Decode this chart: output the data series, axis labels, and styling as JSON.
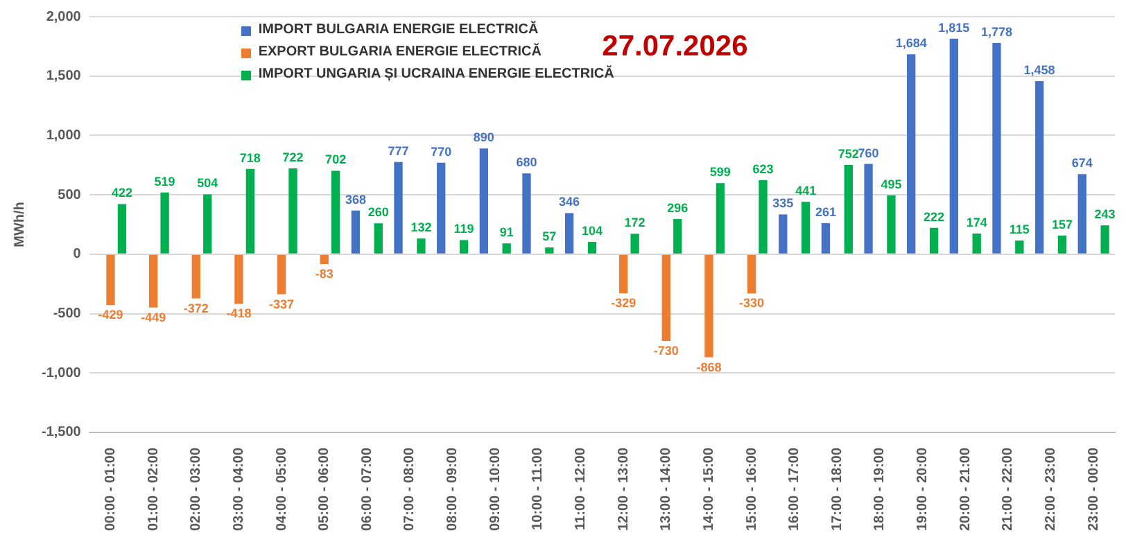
{
  "chart_data": {
    "type": "bar",
    "title": "27.07.2026",
    "ylabel": "MWh/h",
    "categories": [
      "00:00 - 01:00",
      "01:00 - 02:00",
      "02:00 - 03:00",
      "03:00 - 04:00",
      "04:00 - 05:00",
      "05:00 - 06:00",
      "06:00 - 07:00",
      "07:00 - 08:00",
      "08:00 - 09:00",
      "09:00 - 10:00",
      "10:00 - 11:00",
      "11:00 - 12:00",
      "12:00 - 13:00",
      "13:00 - 14:00",
      "14:00 - 15:00",
      "15:00 - 16:00",
      "16:00 - 17:00",
      "17:00 - 18:00",
      "18:00 - 19:00",
      "19:00 - 20:00",
      "20:00 - 21:00",
      "21:00 - 22:00",
      "22:00 - 23:00",
      "23:00 - 00:00"
    ],
    "series": [
      {
        "name": "IMPORT BULGARIA ENERGIE ELECTRICĂ",
        "color": "#4472c4",
        "values": [
          null,
          null,
          null,
          null,
          null,
          null,
          368,
          777,
          770,
          890,
          680,
          346,
          null,
          null,
          null,
          null,
          335,
          261,
          760,
          1684,
          1815,
          1778,
          1458,
          674
        ],
        "value_labels": [
          null,
          null,
          null,
          null,
          null,
          null,
          "368",
          "777",
          "770",
          "890",
          "680",
          "346",
          null,
          null,
          null,
          null,
          "335",
          "261",
          "760",
          "1,684",
          "1,815",
          "1,778",
          "1,458",
          "674"
        ]
      },
      {
        "name": "EXPORT BULGARIA ENERGIE ELECTRICĂ",
        "color": "#ed7d31",
        "values": [
          -429,
          -449,
          -372,
          -418,
          -337,
          -83,
          null,
          null,
          null,
          null,
          null,
          null,
          -329,
          -730,
          -868,
          -330,
          null,
          null,
          null,
          null,
          null,
          null,
          null,
          null
        ],
        "value_labels": [
          "-429",
          "-449",
          "-372",
          "-418",
          "-337",
          "-83",
          null,
          null,
          null,
          null,
          null,
          null,
          "-329",
          "-730",
          "-868",
          "-330",
          null,
          null,
          null,
          null,
          null,
          null,
          null,
          null
        ]
      },
      {
        "name": "IMPORT UNGARIA ȘI UCRAINA ENERGIE ELECTRICĂ",
        "color": "#00b050",
        "values": [
          422,
          519,
          504,
          718,
          722,
          702,
          260,
          132,
          119,
          91,
          57,
          104,
          172,
          296,
          599,
          623,
          441,
          752,
          495,
          222,
          174,
          115,
          157,
          243
        ],
        "value_labels": [
          "422",
          "519",
          "504",
          "718",
          "722",
          "702",
          "260",
          "132",
          "119",
          "91",
          "57",
          "104",
          "172",
          "296",
          "599",
          "623",
          "441",
          "752",
          "495",
          "222",
          "174",
          "115",
          "157",
          "243"
        ]
      }
    ],
    "ylim": [
      -1500,
      2000
    ],
    "yticks": [
      {
        "value": -1500,
        "label": "-1,500"
      },
      {
        "value": -1000,
        "label": "-1,000"
      },
      {
        "value": -500,
        "label": "-500"
      },
      0,
      500,
      {
        "value": 1000,
        "label": "1,000"
      },
      {
        "value": 1500,
        "label": "1,500"
      },
      {
        "value": 2000,
        "label": "2,000"
      }
    ],
    "grid": "y",
    "legend": "top left"
  }
}
